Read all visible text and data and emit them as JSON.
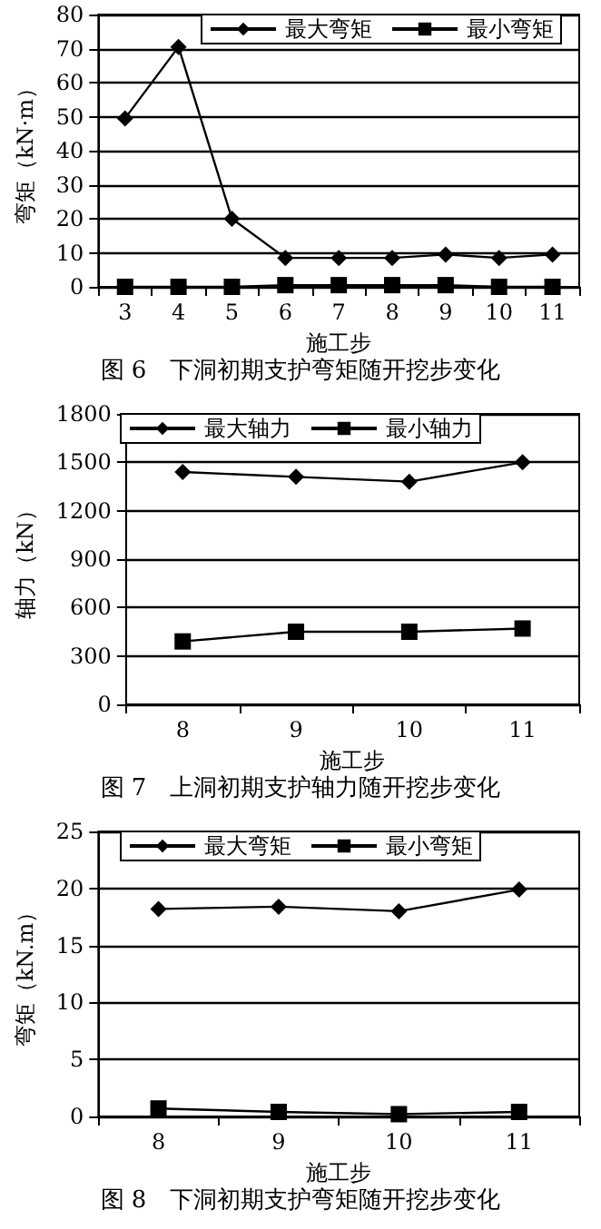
{
  "chart_data": [
    {
      "type": "line",
      "title": "图 6　下洞初期支护弯矩随开挖步变化",
      "xlabel": "施工步",
      "ylabel": "弯矩（kN·m）",
      "categories": [
        "3",
        "4",
        "5",
        "6",
        "7",
        "8",
        "9",
        "10",
        "11"
      ],
      "series": [
        {
          "name": "最大弯矩",
          "color": "#000000",
          "marker": "diamond",
          "values": [
            49.5,
            70.5,
            20,
            8.5,
            8.5,
            8.5,
            9.5,
            8.5,
            9.5
          ]
        },
        {
          "name": "最小弯矩",
          "color": "#000000",
          "marker": "square",
          "values": [
            0,
            0,
            0,
            0.5,
            0.5,
            0.5,
            0.5,
            0,
            0
          ]
        }
      ],
      "ylim": [
        0,
        80
      ],
      "yticks": [
        0,
        10,
        20,
        30,
        40,
        50,
        60,
        70,
        80
      ],
      "grid": "y",
      "legend": "top right",
      "line_style": "solid"
    },
    {
      "type": "line",
      "title": "图 7　上洞初期支护轴力随开挖步变化",
      "xlabel": "施工步",
      "ylabel": "轴力（kN）",
      "categories": [
        "8",
        "9",
        "10",
        "11"
      ],
      "series": [
        {
          "name": "最大轴力",
          "color": "#000000",
          "marker": "diamond",
          "values": [
            1440,
            1410,
            1380,
            1500
          ]
        },
        {
          "name": "最小轴力",
          "color": "#000000",
          "marker": "square",
          "values": [
            390,
            450,
            450,
            470
          ]
        }
      ],
      "ylim": [
        0,
        1800
      ],
      "yticks": [
        0,
        300,
        600,
        900,
        1200,
        1500,
        1800
      ],
      "grid": "y",
      "legend": "top",
      "line_style": "solid"
    },
    {
      "type": "line",
      "title": "图 8　下洞初期支护弯矩随开挖步变化",
      "xlabel": "施工步",
      "ylabel": "弯矩（kN.m）",
      "categories": [
        "8",
        "9",
        "10",
        "11"
      ],
      "series": [
        {
          "name": "最大弯矩",
          "color": "#000000",
          "marker": "diamond",
          "values": [
            18.2,
            18.4,
            18,
            19.9
          ]
        },
        {
          "name": "最小弯矩",
          "color": "#000000",
          "marker": "square",
          "values": [
            0.7,
            0.4,
            0.2,
            0.4
          ]
        }
      ],
      "ylim": [
        0,
        25
      ],
      "yticks": [
        0,
        5,
        10,
        15,
        20,
        25
      ],
      "grid": "y",
      "legend": "top",
      "line_style": "solid"
    }
  ]
}
